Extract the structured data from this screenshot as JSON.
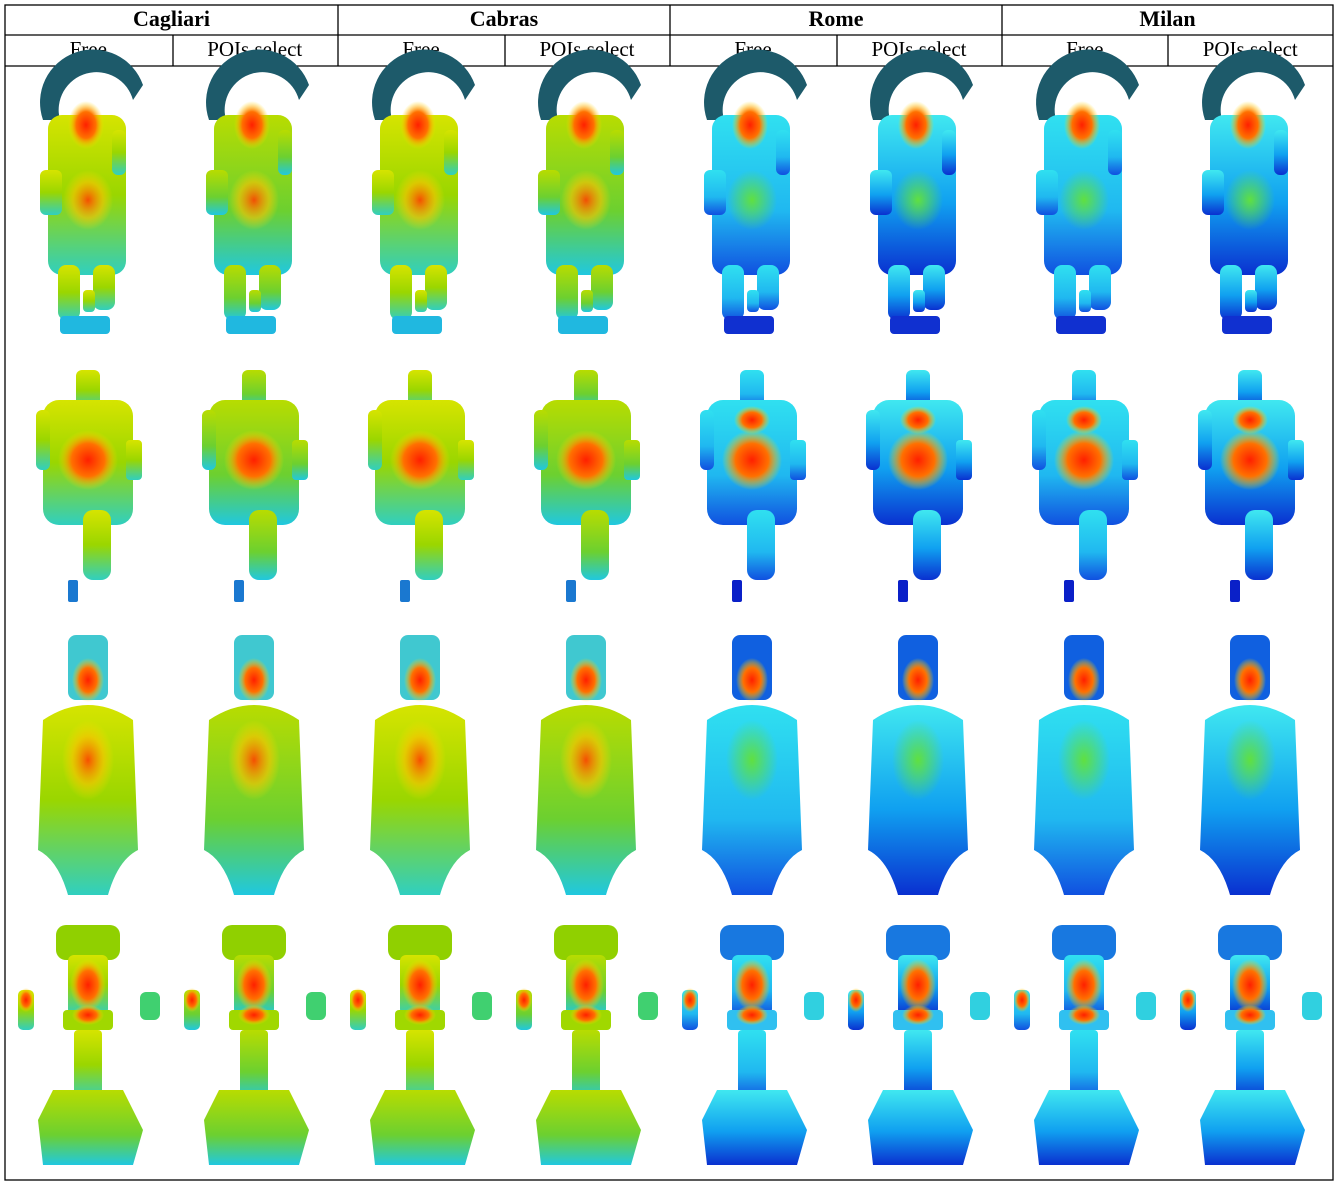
{
  "columns": [
    {
      "city": "Cagliari",
      "modes": [
        "Free",
        "POIs select"
      ]
    },
    {
      "city": "Cabras",
      "modes": [
        "Free",
        "POIs select"
      ]
    },
    {
      "city": "Rome",
      "modes": [
        "Free",
        "POIs select"
      ]
    },
    {
      "city": "Milan",
      "modes": [
        "Free",
        "POIs select"
      ]
    }
  ]
}
